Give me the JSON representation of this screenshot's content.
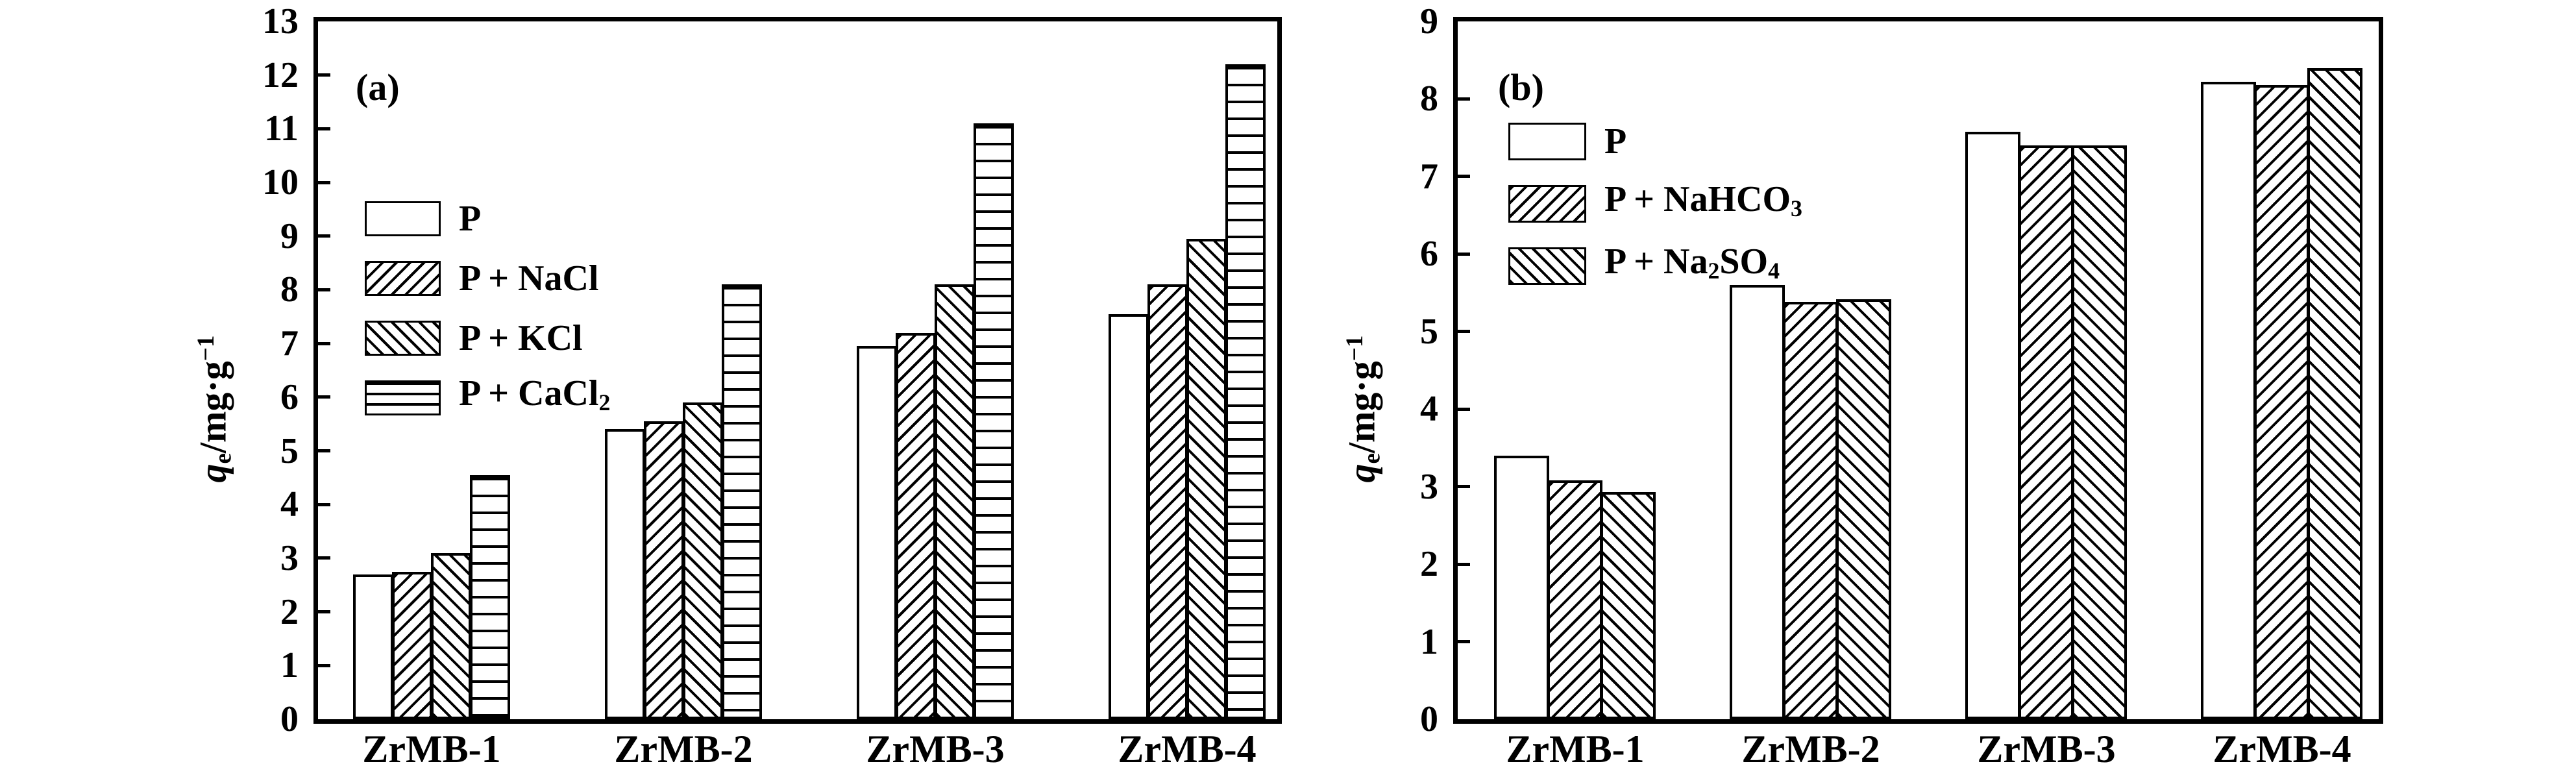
{
  "figure": {
    "background": "#ffffff",
    "ink": "#000000",
    "bar_fill": "#ffffff"
  },
  "chart_data": [
    {
      "type": "bar",
      "panel_label": "(a)",
      "ylabel_parts": [
        {
          "t": "i",
          "v": "q"
        },
        {
          "t": "s",
          "v": "e"
        },
        {
          "t": "n",
          "v": "/mg·g"
        },
        {
          "t": "p",
          "v": "−1"
        }
      ],
      "ylim": [
        0,
        13
      ],
      "ytick_step": 1,
      "yticks": [
        "0",
        "1",
        "2",
        "3",
        "4",
        "5",
        "6",
        "7",
        "8",
        "9",
        "10",
        "11",
        "12",
        "13"
      ],
      "grid": false,
      "legend_position": "upper-left-inside",
      "categories": [
        "ZrMB-1",
        "ZrMB-2",
        "ZrMB-3",
        "ZrMB-4"
      ],
      "series": [
        {
          "name": "P",
          "hatch": "none",
          "label_parts": [
            {
              "t": "n",
              "v": "P"
            }
          ],
          "values": [
            2.7,
            5.4,
            6.95,
            7.55
          ]
        },
        {
          "name": "P + NaCl",
          "hatch": "diagonal-forward",
          "label_parts": [
            {
              "t": "n",
              "v": "P + NaCl"
            }
          ],
          "values": [
            2.75,
            5.55,
            7.2,
            8.1
          ]
        },
        {
          "name": "P + KCl",
          "hatch": "diagonal-backward",
          "label_parts": [
            {
              "t": "n",
              "v": "P + KCl"
            }
          ],
          "values": [
            3.1,
            5.9,
            8.1,
            8.95
          ]
        },
        {
          "name": "P + CaCl2",
          "hatch": "horizontal",
          "label_parts": [
            {
              "t": "n",
              "v": "P + CaCl"
            },
            {
              "t": "s",
              "v": "2"
            }
          ],
          "values": [
            4.55,
            8.1,
            11.1,
            12.2
          ]
        }
      ]
    },
    {
      "type": "bar",
      "panel_label": "(b)",
      "ylabel_parts": [
        {
          "t": "i",
          "v": "q"
        },
        {
          "t": "s",
          "v": "e"
        },
        {
          "t": "n",
          "v": "/mg·g"
        },
        {
          "t": "p",
          "v": "−1"
        }
      ],
      "ylim": [
        0,
        9
      ],
      "ytick_step": 1,
      "yticks": [
        "0",
        "1",
        "2",
        "3",
        "4",
        "5",
        "6",
        "7",
        "8",
        "9"
      ],
      "grid": false,
      "legend_position": "upper-left-inside",
      "categories": [
        "ZrMB-1",
        "ZrMB-2",
        "ZrMB-3",
        "ZrMB-4"
      ],
      "series": [
        {
          "name": "P",
          "hatch": "none",
          "label_parts": [
            {
              "t": "n",
              "v": "P"
            }
          ],
          "values": [
            3.4,
            5.6,
            7.58,
            8.22
          ]
        },
        {
          "name": "P + NaHCO3",
          "hatch": "diagonal-forward",
          "label_parts": [
            {
              "t": "n",
              "v": "P + NaHCO"
            },
            {
              "t": "s",
              "v": "3"
            }
          ],
          "values": [
            3.08,
            5.38,
            7.4,
            8.18
          ]
        },
        {
          "name": "P + Na2SO4",
          "hatch": "diagonal-backward",
          "label_parts": [
            {
              "t": "n",
              "v": "P + Na"
            },
            {
              "t": "s",
              "v": "2"
            },
            {
              "t": "n",
              "v": "SO"
            },
            {
              "t": "s",
              "v": "4"
            }
          ],
          "values": [
            2.93,
            5.42,
            7.4,
            8.4
          ]
        }
      ]
    }
  ]
}
